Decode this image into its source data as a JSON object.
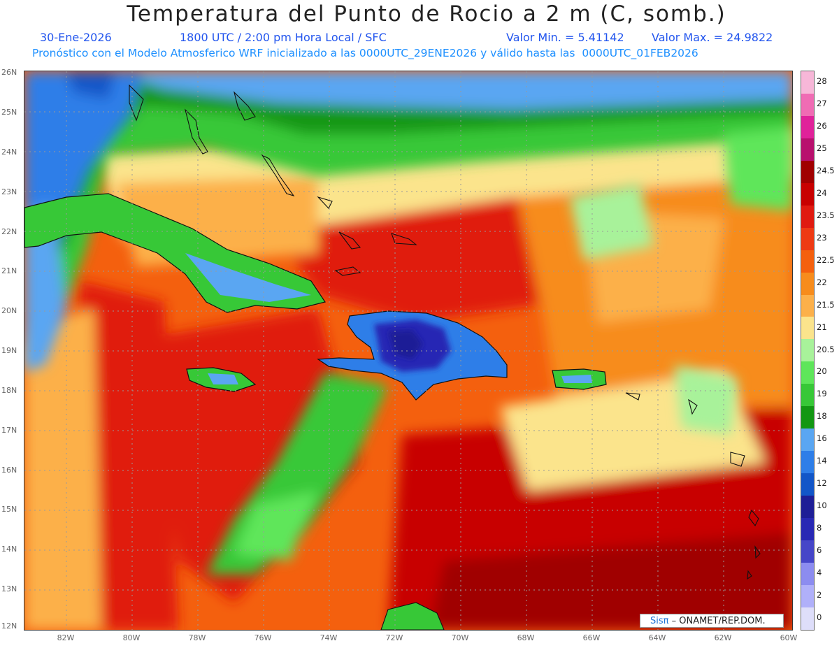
{
  "header": {
    "title": "Temperatura del Punto de Rocio a 2 m (C, somb.)",
    "date": "30-Ene-2026",
    "time": "1800 UTC / 2:00 pm Hora Local / SFC",
    "min": "Valor Min. = 5.41142",
    "max": "Valor Max. = 24.9822",
    "model": "Pronóstico con el Modelo Atmosferico WRF inicializado a las 0000UTC_29ENE2026 y válido hasta las  0000UTC_01FEB2026"
  },
  "axes": {
    "lat_labels": [
      "26N",
      "25N",
      "24N",
      "23N",
      "22N",
      "21N",
      "20N",
      "19N",
      "18N",
      "17N",
      "16N",
      "15N",
      "14N",
      "13N",
      "12N"
    ],
    "lon_labels": [
      "82W",
      "80W",
      "78W",
      "76W",
      "74W",
      "72W",
      "70W",
      "68W",
      "66W",
      "64W",
      "62W",
      "60W"
    ]
  },
  "legend": {
    "labels": [
      "28",
      "27",
      "26",
      "25",
      "24.5",
      "24",
      "23.5",
      "23",
      "22.5",
      "22",
      "21.5",
      "21",
      "20.5",
      "20",
      "19",
      "18",
      "16",
      "14",
      "12",
      "10",
      "8",
      "6",
      "4",
      "2",
      "0"
    ],
    "colors": [
      "#f7b7d8",
      "#f06cb4",
      "#e0229a",
      "#b8106e",
      "#a00000",
      "#c80000",
      "#e01a10",
      "#ee3a14",
      "#f4600e",
      "#f78c1c",
      "#fcb04a",
      "#fbe48c",
      "#a8f29a",
      "#5ee65a",
      "#37c837",
      "#129712",
      "#5aa6f2",
      "#2e7ee8",
      "#1256c8",
      "#1e1e96",
      "#2828b4",
      "#4646c8",
      "#8c8cf0",
      "#b0b0fa",
      "#dedefa"
    ]
  },
  "credit": {
    "sis": "Sisπ",
    "text": "– ONAMET/REP.DOM."
  }
}
